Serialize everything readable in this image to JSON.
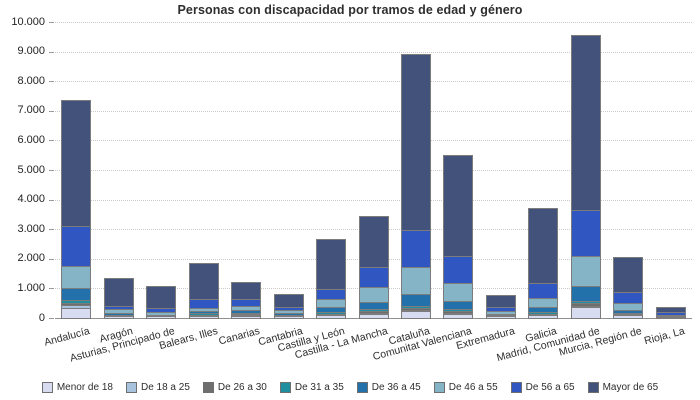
{
  "chart_data": {
    "type": "bar",
    "stacked": true,
    "title": "Personas con discapacidad por tramos de edad y género",
    "xlabel": "",
    "ylabel": "",
    "ylim": [
      0,
      10000
    ],
    "ytick_step": 1000,
    "ytick_labels": [
      "0",
      "1.000",
      "2.000",
      "3.000",
      "4.000",
      "5.000",
      "6.000",
      "7.000",
      "8.000",
      "9.000",
      "10.000"
    ],
    "grid": "horizontal-dotted",
    "legend_position": "bottom",
    "categories": [
      "Andalucía",
      "Aragón",
      "Asturias, Principado de",
      "Balears, Illes",
      "Canarias",
      "Cantabria",
      "Castilla y León",
      "Castilla - La Mancha",
      "Cataluña",
      "Comunitat Valenciana",
      "Extremadura",
      "Galicia",
      "Madrid, Comunidad de",
      "Murcia, Región de",
      "Rioja, La"
    ],
    "series": [
      {
        "name": "Menor de 18",
        "color": "#d7dcf1",
        "values": [
          300,
          30,
          25,
          40,
          40,
          35,
          60,
          100,
          190,
          100,
          30,
          65,
          350,
          75,
          15
        ]
      },
      {
        "name": "De 18 a 25",
        "color": "#a7c3dd",
        "values": [
          90,
          15,
          10,
          20,
          20,
          15,
          30,
          45,
          55,
          45,
          12,
          18,
          35,
          15,
          7
        ]
      },
      {
        "name": "De 26 a 30",
        "color": "#6e6e6e",
        "values": [
          90,
          15,
          10,
          20,
          30,
          12,
          25,
          50,
          45,
          48,
          12,
          18,
          80,
          20,
          7
        ]
      },
      {
        "name": "De 31 a 35",
        "color": "#1f8e9e",
        "values": [
          110,
          20,
          12,
          45,
          45,
          18,
          60,
          75,
          90,
          67,
          15,
          58,
          80,
          35,
          8
        ]
      },
      {
        "name": "De 36 a 45",
        "color": "#2271ab",
        "values": [
          385,
          70,
          15,
          75,
          110,
          60,
          155,
          230,
          395,
          270,
          35,
          170,
          505,
          92,
          12
        ]
      },
      {
        "name": "De 46 a 55",
        "color": "#84b4c6",
        "values": [
          765,
          115,
          90,
          120,
          135,
          100,
          285,
          505,
          925,
          610,
          90,
          315,
          1015,
          226,
          18
        ]
      },
      {
        "name": "De 56 a 65",
        "color": "#3056c2",
        "values": [
          1330,
          120,
          135,
          290,
          225,
          95,
          340,
          675,
          1250,
          930,
          135,
          495,
          1545,
          372,
          95
        ]
      },
      {
        "name": "Mayor de 65",
        "color": "#42527b",
        "values": [
          4250,
          950,
          765,
          1230,
          585,
          445,
          1680,
          1750,
          5950,
          3410,
          420,
          2545,
          5935,
          1180,
          175
        ]
      }
    ],
    "totals": [
      7320,
      1335,
      1062,
      1840,
      1190,
      780,
      2635,
      3430,
      8900,
      5480,
      749,
      3684,
      9545,
      2015,
      337
    ]
  },
  "colors": {
    "background": "#ffffff",
    "gridline": "#cbcbcb",
    "axis": "#8f8f8f",
    "segment_outline": "#7c7c7c",
    "text": "#2e2e2e"
  }
}
